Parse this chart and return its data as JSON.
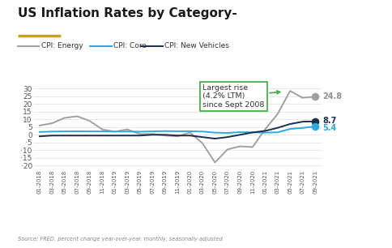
{
  "title": "US Inflation Rates by Category-",
  "title_underline_color": "#c8a800",
  "source_text": "Source: FRED, percent change year-over-year, monthly, seasonally adjusted",
  "legend_labels": [
    "CPI: Energy",
    "CPI: Core",
    "CPI: New Vehicles"
  ],
  "x_labels": [
    "01-2018",
    "03-2018",
    "05-2018",
    "07-2018",
    "09-2018",
    "11-2018",
    "01-2019",
    "03-2019",
    "05-2019",
    "07-2019",
    "09-2019",
    "11-2019",
    "01-2020",
    "03-2020",
    "05-2020",
    "07-2020",
    "09-2020",
    "11-2020",
    "01-2021",
    "03-2021",
    "05-2021",
    "07-2021",
    "09-2021"
  ],
  "cpi_energy": [
    6.0,
    7.5,
    11.0,
    12.0,
    9.0,
    3.5,
    2.0,
    3.5,
    0.5,
    0.5,
    -0.5,
    -1.0,
    1.5,
    -5.5,
    -18.0,
    -9.5,
    -7.5,
    -8.0,
    3.5,
    13.5,
    28.5,
    24.0,
    24.8
  ],
  "cpi_core": [
    1.8,
    2.1,
    2.2,
    2.3,
    2.2,
    2.2,
    2.1,
    2.1,
    2.0,
    2.2,
    2.4,
    2.3,
    2.3,
    2.1,
    1.4,
    1.2,
    1.7,
    1.6,
    1.4,
    1.6,
    3.8,
    4.5,
    5.4
  ],
  "cpi_new_vehicles": [
    -1.0,
    -0.5,
    -0.5,
    -0.5,
    -0.5,
    -0.5,
    -0.5,
    -0.5,
    -0.5,
    0.0,
    0.0,
    -0.5,
    -0.5,
    -1.5,
    -2.5,
    -1.5,
    0.0,
    1.5,
    2.5,
    4.5,
    7.0,
    8.5,
    8.7
  ],
  "energy_color": "#a0a0a0",
  "core_color": "#29aae2",
  "new_vehicles_color": "#1a2e4a",
  "ylim": [
    -22,
    36
  ],
  "yticks": [
    -20,
    -15,
    -10,
    -5,
    0,
    5,
    10,
    15,
    20,
    25,
    30
  ],
  "annotation_text": "Largest rise\n(4.2% LTM)\nsince Sept 2008",
  "annotation_box_color": "#4cae4c",
  "end_labels": [
    "24.8",
    "8.7",
    "5.4"
  ],
  "end_label_colors": [
    "#909090",
    "#1a2e4a",
    "#29aae2"
  ],
  "background_color": "#ffffff",
  "grid_color": "#dddddd"
}
